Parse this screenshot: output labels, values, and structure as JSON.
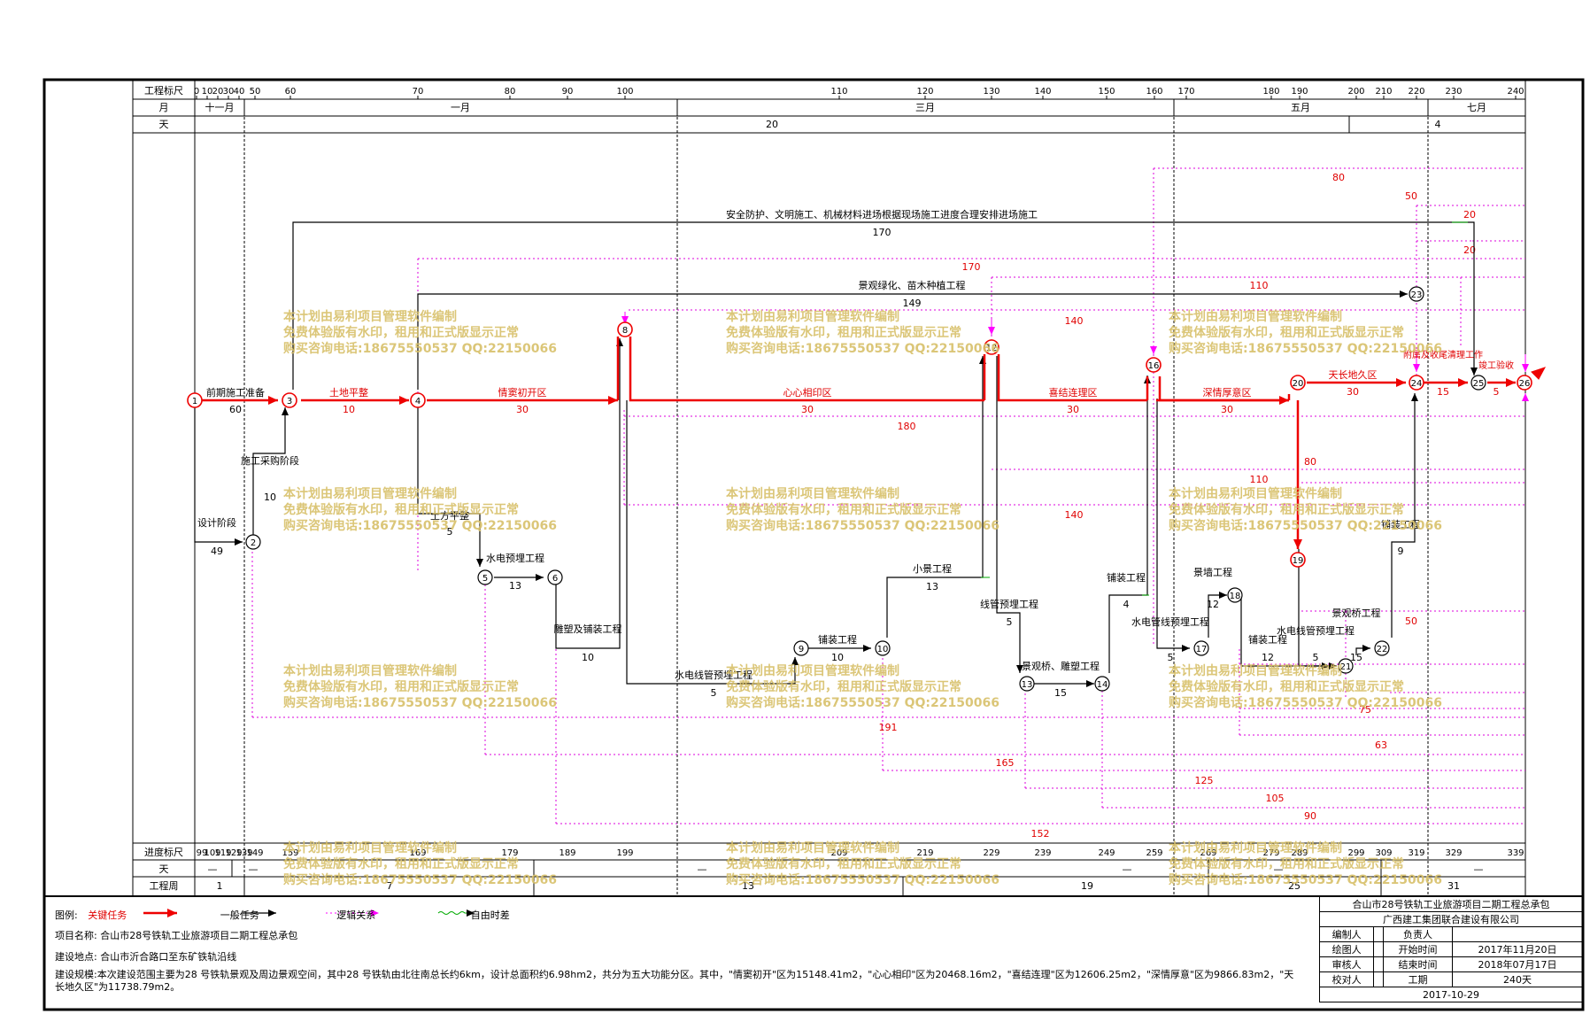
{
  "scale": {
    "label_ruler": "工程标尺",
    "label_month": "月",
    "label_day": "天",
    "ruler_ticks": [
      "0",
      "10",
      "20",
      "30",
      "40",
      "50",
      "60",
      "70",
      "80",
      "90",
      "100",
      "110",
      "120",
      "130",
      "140",
      "150",
      "160",
      "170",
      "180",
      "190",
      "200",
      "210",
      "220",
      "230",
      "240"
    ],
    "months": [
      "十一月",
      "一月",
      "三月",
      "五月",
      "七月"
    ],
    "day_values": [
      "20",
      "4"
    ],
    "bottom_label_ruler": "进度标尺",
    "bottom_label_day": "天",
    "bottom_label_week": "工程周",
    "bottom_ticks": [
      "99",
      "109",
      "119",
      "129",
      "139",
      "149",
      "159",
      "169",
      "179",
      "189",
      "199",
      "209",
      "219",
      "229",
      "239",
      "249",
      "259",
      "269",
      "279",
      "289",
      "299",
      "309",
      "319",
      "329",
      "339"
    ],
    "bottom_day_marks": [
      "—",
      "—",
      "—",
      "—",
      "—",
      "—"
    ],
    "weeks": [
      "1",
      "7",
      "13",
      "19",
      "25",
      "31"
    ]
  },
  "tasks": {
    "prep": {
      "name": "前期施工准备",
      "dur": "60"
    },
    "design": {
      "name": "设计阶段",
      "dur": "49"
    },
    "purchase": {
      "name": "施工采购阶段",
      "dur": "10"
    },
    "land": {
      "name": "土地平整",
      "dur": "10"
    },
    "qinghuai": {
      "name": "情窦初开区",
      "dur": "30"
    },
    "earth": {
      "name": "土方平整",
      "dur": "5"
    },
    "water1": {
      "name": "水电预埋工程",
      "dur": "13"
    },
    "sculpt": {
      "name": "雕塑及铺装工程",
      "dur": "10"
    },
    "xinxin": {
      "name": "心心相印区",
      "dur": "30"
    },
    "pipe1": {
      "name": "水电线管预埋工程",
      "dur": "5"
    },
    "pave1": {
      "name": "铺装工程",
      "dur": "10"
    },
    "small": {
      "name": "小景工程",
      "dur": "13"
    },
    "xijie": {
      "name": "喜结连理区",
      "dur": "30"
    },
    "pipe2": {
      "name": "线管预埋工程",
      "dur": "5"
    },
    "bridge": {
      "name": "景观桥、雕塑工程",
      "dur": "15"
    },
    "pave2": {
      "name": "铺装工程",
      "dur": "4"
    },
    "shenqing": {
      "name": "深情厚意区",
      "dur": "30"
    },
    "water2": {
      "name": "水电管线预埋工程",
      "dur": "5"
    },
    "land2": {
      "name": "景墙工程",
      "dur": "12"
    },
    "pave3": {
      "name": "铺装工程",
      "dur": "12"
    },
    "water3": {
      "name": "水电线管预埋工程",
      "dur": "5"
    },
    "bridge2": {
      "name": "景观桥工程",
      "dur": "15"
    },
    "pave4": {
      "name": "铺装工程",
      "dur": "9"
    },
    "tianchang": {
      "name": "天长地久区",
      "dur": "30"
    },
    "finish": {
      "name": "附属及收尾清理工作",
      "dur": "15"
    },
    "accept": {
      "name": "竣工验收",
      "dur": "5"
    },
    "safety": {
      "name": "安全防护、文明施工、机械材料进场根据现场施工进度合理安排进场施工",
      "dur": "170"
    },
    "green": {
      "name": "景观绿化、苗木种植工程",
      "dur": "149"
    }
  },
  "float_labels": [
    "80",
    "50",
    "20",
    "20",
    "170",
    "110",
    "140",
    "180",
    "110",
    "80",
    "140",
    "50",
    "75",
    "63",
    "191",
    "165",
    "125",
    "105",
    "90",
    "152"
  ],
  "nodes": [
    "1",
    "2",
    "3",
    "4",
    "5",
    "6",
    "8",
    "9",
    "10",
    "12",
    "13",
    "14",
    "16",
    "17",
    "18",
    "19",
    "20",
    "21",
    "22",
    "23",
    "24",
    "25",
    "26"
  ],
  "watermark": [
    "本计划由易利项目管理软件编制",
    "免费体验版有水印，租用和正式版显示正常",
    "购买咨询电话:18675550537 QQ:22150066"
  ],
  "legend": {
    "prefix": "图例:",
    "critical": "关键任务",
    "general": "一般任务",
    "logic": "逻辑关系",
    "free": "自由时差",
    "project_name_label": "项目名称:",
    "project_name": "合山市28号铁轨工业旅游项目二期工程总承包",
    "site_label": "建设地点:",
    "site": "合山市沂合路口至东矿铁轨沿线",
    "scope_label": "建设规模:",
    "scope": "本次建设范围主要为28 号铁轨景观及周边景观空间，其中28 号铁轨由北往南总长约6km，设计总面积约6.98hm2，共分为五大功能分区。其中，\"情窦初开\"区为15148.41m2，\"心心相印\"区为20468.16m2，\"喜结连理\"区为12606.25m2，\"深情厚意\"区为9866.83m2，\"天长地久区\"为11738.79m2。"
  },
  "signature": {
    "title": "合山市28号铁轨工业旅游项目二期工程总承包",
    "company": "广西建工集团联合建设有限公司",
    "drafter": "编制人",
    "owner": "负责人",
    "drawer": "绘图人",
    "start_label": "开始时间",
    "start": "2017年11月20日",
    "reviewer": "审核人",
    "end_label": "结束时间",
    "end": "2018年07月17日",
    "checker": "校对人",
    "period_label": "工期",
    "period": "240天",
    "date": "2017-10-29"
  },
  "colors": {
    "critical": "#ee0000",
    "general": "#000000",
    "free": "#ff00ff",
    "float": "#dd00dd",
    "watermark": "#d8c06a",
    "diff": "#00aa00"
  }
}
